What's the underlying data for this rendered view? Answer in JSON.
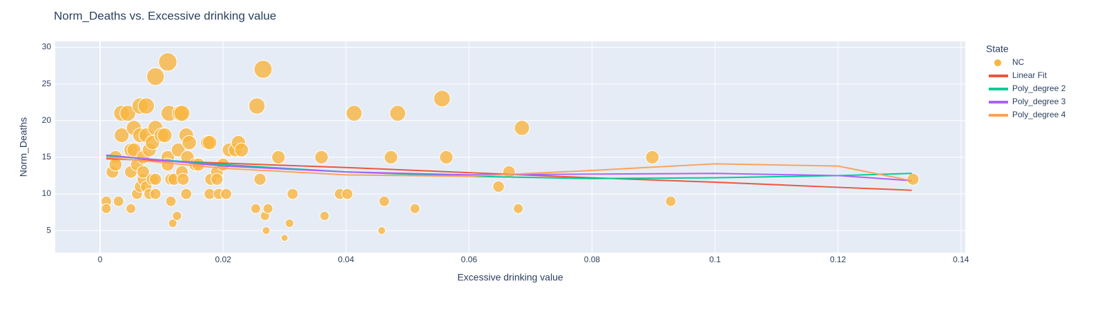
{
  "chart_data": {
    "type": "scatter",
    "title": "Norm_Deaths vs. Excessive drinking value",
    "x_label": "Excessive drinking value",
    "y_label": "Norm_Deaths",
    "legend_title": "State",
    "xlim": [
      -0.0073,
      0.1407
    ],
    "ylim": [
      2,
      30.8
    ],
    "xticks": [
      0,
      0.02,
      0.04,
      0.06,
      0.08,
      0.1,
      0.12,
      0.14
    ],
    "yticks": [
      5,
      10,
      15,
      20,
      25,
      30
    ],
    "grid": true,
    "series": [
      {
        "name": "NC",
        "color": "#f9b540",
        "mode": "markers",
        "x": [
          0.001,
          0.001,
          0.002,
          0.0025,
          0.0025,
          0.003,
          0.0035,
          0.0035,
          0.0045,
          0.005,
          0.005,
          0.005,
          0.0055,
          0.0055,
          0.006,
          0.006,
          0.0065,
          0.0065,
          0.0065,
          0.007,
          0.007,
          0.007,
          0.0075,
          0.0075,
          0.0075,
          0.008,
          0.008,
          0.0085,
          0.0085,
          0.009,
          0.009,
          0.009,
          0.009,
          0.01,
          0.0105,
          0.011,
          0.0112,
          0.011,
          0.011,
          0.0115,
          0.0115,
          0.0118,
          0.012,
          0.0125,
          0.0127,
          0.013,
          0.0133,
          0.0133,
          0.0135,
          0.014,
          0.014,
          0.0142,
          0.0145,
          0.0155,
          0.016,
          0.0175,
          0.0178,
          0.0178,
          0.018,
          0.019,
          0.019,
          0.0193,
          0.02,
          0.0205,
          0.021,
          0.022,
          0.0225,
          0.023,
          0.0253,
          0.0255,
          0.026,
          0.0265,
          0.0268,
          0.027,
          0.0273,
          0.029,
          0.0308,
          0.03,
          0.0313,
          0.036,
          0.0365,
          0.039,
          0.0402,
          0.0413,
          0.0458,
          0.0462,
          0.0473,
          0.0484,
          0.0512,
          0.0556,
          0.0563,
          0.0648,
          0.0665,
          0.068,
          0.0686,
          0.0898,
          0.0928,
          0.1322
        ],
        "values": [
          9,
          8,
          13,
          15,
          14,
          9,
          18,
          21,
          21,
          16,
          13,
          8,
          19,
          16,
          10,
          14,
          22,
          18,
          11,
          12,
          13,
          15,
          22,
          18,
          11,
          16,
          10,
          17,
          12,
          26,
          19,
          12,
          10,
          18,
          18,
          28,
          21,
          15,
          14,
          12,
          9,
          6,
          12,
          7,
          16,
          21,
          21,
          13,
          12,
          18,
          10,
          15,
          17,
          14,
          14,
          17,
          17,
          10,
          12,
          13,
          12,
          10,
          14,
          10,
          16,
          16,
          17,
          16,
          8,
          22,
          12,
          27,
          7,
          5,
          8,
          15,
          6,
          4,
          10,
          15,
          7,
          10,
          10,
          21,
          5,
          9,
          15,
          21,
          8,
          23,
          15,
          11,
          13,
          8,
          19,
          15,
          9,
          12
        ]
      },
      {
        "name": "Linear Fit",
        "color": "#EF553B",
        "mode": "lines",
        "x": [
          0.001,
          0.02,
          0.04,
          0.06,
          0.08,
          0.1,
          0.12,
          0.132
        ],
        "values": [
          14.8,
          14.2,
          13.6,
          12.9,
          12.2,
          11.6,
          10.9,
          10.5
        ]
      },
      {
        "name": "Poly_degree 2",
        "color": "#00CC96",
        "mode": "lines",
        "x": [
          0.001,
          0.02,
          0.04,
          0.06,
          0.08,
          0.1,
          0.12,
          0.132
        ],
        "values": [
          15.2,
          14.0,
          13.0,
          12.4,
          12.1,
          12.2,
          12.5,
          12.8
        ]
      },
      {
        "name": "Poly_degree 3",
        "color": "#AB63FA",
        "mode": "lines",
        "x": [
          0.001,
          0.02,
          0.04,
          0.06,
          0.08,
          0.1,
          0.12,
          0.132
        ],
        "values": [
          15.3,
          13.8,
          13.0,
          12.6,
          12.7,
          12.8,
          12.5,
          11.8
        ]
      },
      {
        "name": "Poly_degree 4",
        "color": "#FFA15A",
        "mode": "lines",
        "x": [
          0.001,
          0.02,
          0.04,
          0.06,
          0.08,
          0.1,
          0.12,
          0.132
        ],
        "values": [
          15.0,
          13.5,
          12.6,
          12.4,
          13.2,
          14.1,
          13.8,
          11.8
        ]
      }
    ]
  }
}
